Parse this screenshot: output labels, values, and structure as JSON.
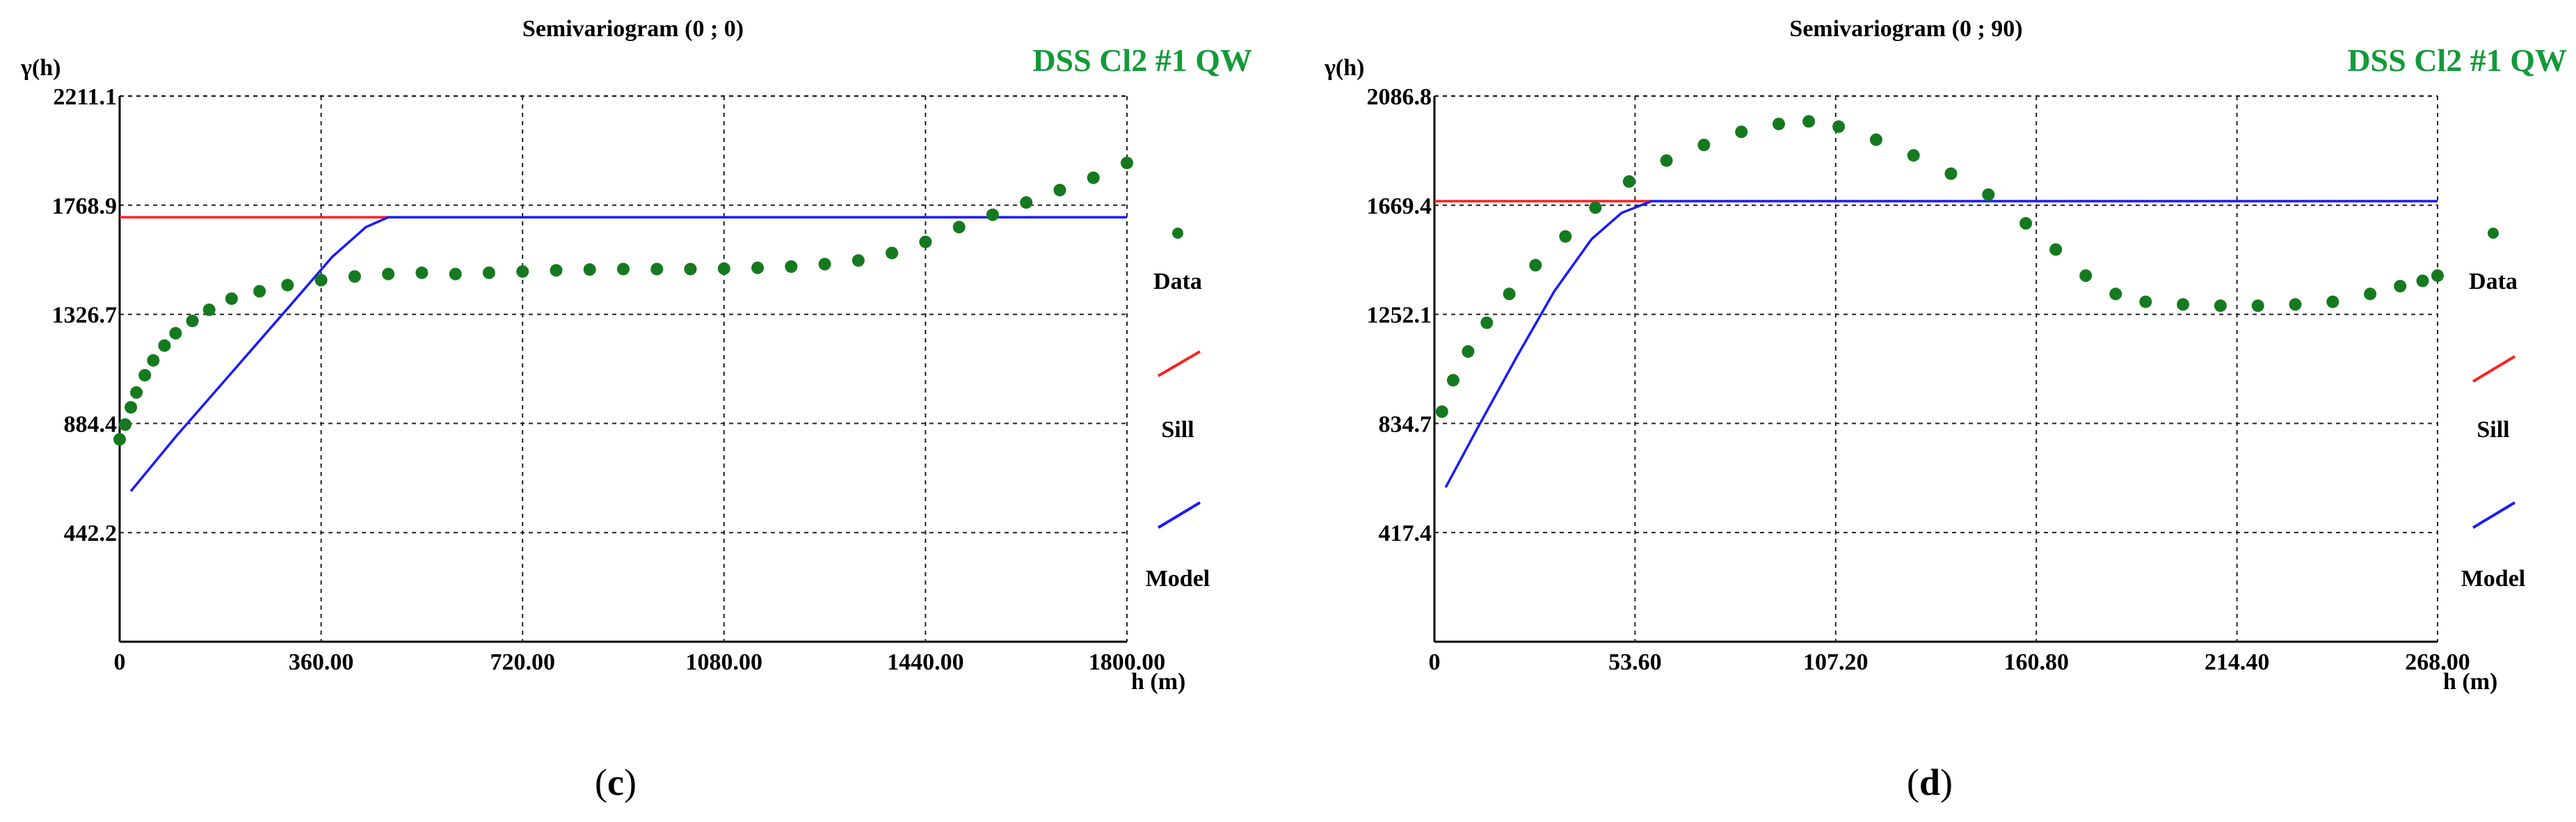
{
  "colors": {
    "data": "#157a1f",
    "sill": "#ff2020",
    "model": "#1a1aff",
    "code": "#139a38",
    "grid": "#222222"
  },
  "chart_data": [
    {
      "type": "scatter",
      "title": "Semivariogram (0 ;  0)",
      "code_label": "DSS Cl2 #1 QW",
      "ylabel": "γ(h)",
      "xlabel": "h (m)",
      "xlim": [
        0,
        1800
      ],
      "ylim": [
        0,
        2211.1
      ],
      "xticks": [
        0,
        360,
        720,
        1080,
        1440,
        1800
      ],
      "xtick_labels": [
        "0",
        "360.00",
        "720.00",
        "1080.00",
        "1440.00",
        "1800.00"
      ],
      "yticks": [
        442.2,
        884.4,
        1326.7,
        1768.9,
        2211.1
      ],
      "ytick_labels": [
        "442.2",
        "884.4",
        "1326.7",
        "1768.9",
        "2211.1"
      ],
      "grid": true,
      "legend_position": "right",
      "legend": [
        "Data",
        "Sill",
        "Model"
      ],
      "caption_open": "(",
      "caption_letter": "c",
      "caption_close": ")",
      "series": [
        {
          "name": "Data",
          "kind": "points",
          "x": [
            0,
            10,
            20,
            30,
            45,
            60,
            80,
            100,
            130,
            160,
            200,
            250,
            300,
            360,
            420,
            480,
            540,
            600,
            660,
            720,
            780,
            840,
            900,
            960,
            1020,
            1080,
            1140,
            1200,
            1260,
            1320,
            1380,
            1440,
            1500,
            1560,
            1620,
            1680,
            1740,
            1800
          ],
          "y": [
            820,
            880,
            950,
            1010,
            1080,
            1140,
            1200,
            1250,
            1300,
            1345,
            1390,
            1420,
            1445,
            1465,
            1480,
            1490,
            1495,
            1490,
            1495,
            1500,
            1505,
            1508,
            1510,
            1510,
            1510,
            1512,
            1515,
            1520,
            1530,
            1545,
            1575,
            1620,
            1680,
            1730,
            1780,
            1830,
            1880,
            1940
          ]
        },
        {
          "name": "Sill",
          "kind": "line",
          "x": [
            0,
            480
          ],
          "y": [
            1720,
            1720
          ]
        },
        {
          "name": "Model",
          "kind": "line",
          "x": [
            20,
            100,
            200,
            300,
            380,
            440,
            480,
            1800
          ],
          "y": [
            610,
            830,
            1090,
            1350,
            1560,
            1680,
            1720,
            1720
          ]
        }
      ]
    },
    {
      "type": "scatter",
      "title": "Semivariogram (0 ; 90)",
      "code_label": "DSS Cl2 #1 QW",
      "ylabel": "γ(h)",
      "xlabel": "h (m)",
      "xlim": [
        0,
        268
      ],
      "ylim": [
        0,
        2086.8
      ],
      "xticks": [
        0,
        53.6,
        107.2,
        160.8,
        214.4,
        268
      ],
      "xtick_labels": [
        "0",
        "53.60",
        "107.20",
        "160.80",
        "214.40",
        "268.00"
      ],
      "yticks": [
        417.4,
        834.7,
        1252.1,
        1669.4,
        2086.8
      ],
      "ytick_labels": [
        "417.4",
        "834.7",
        "1252.1",
        "1669.4",
        "2086.8"
      ],
      "grid": true,
      "legend_position": "right",
      "legend": [
        "Data",
        "Sill",
        "Model"
      ],
      "caption_open": "(",
      "caption_letter": "d",
      "caption_close": ")",
      "series": [
        {
          "name": "Data",
          "kind": "points",
          "x": [
            2,
            5,
            9,
            14,
            20,
            27,
            35,
            43,
            52,
            62,
            72,
            82,
            92,
            100,
            108,
            118,
            128,
            138,
            148,
            158,
            166,
            174,
            182,
            190,
            200,
            210,
            220,
            230,
            240,
            250,
            258,
            264,
            268
          ],
          "y": [
            880,
            1000,
            1110,
            1220,
            1330,
            1440,
            1550,
            1660,
            1760,
            1840,
            1900,
            1950,
            1980,
            1990,
            1970,
            1920,
            1860,
            1790,
            1710,
            1600,
            1500,
            1400,
            1330,
            1300,
            1290,
            1285,
            1285,
            1290,
            1300,
            1330,
            1360,
            1380,
            1400
          ]
        },
        {
          "name": "Sill",
          "kind": "line",
          "x": [
            0,
            58
          ],
          "y": [
            1685,
            1685
          ]
        },
        {
          "name": "Model",
          "kind": "line",
          "x": [
            3,
            12,
            22,
            32,
            42,
            50,
            58,
            268
          ],
          "y": [
            590,
            830,
            1090,
            1340,
            1540,
            1640,
            1685,
            1685
          ]
        }
      ]
    }
  ]
}
